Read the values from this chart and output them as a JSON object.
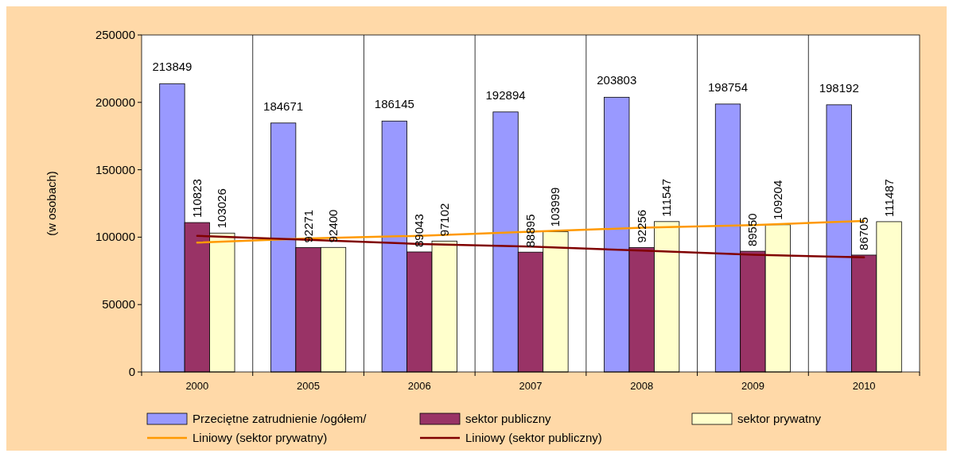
{
  "chart_data": {
    "type": "bar",
    "ylabel": "(w osobach)",
    "categories": [
      "2000",
      "2005",
      "2006",
      "2007",
      "2008",
      "2009",
      "2010"
    ],
    "series": [
      {
        "name": "Przeciętne zatrudnienie /ogółem/",
        "color": "#9999ff",
        "values": [
          213849,
          184671,
          186145,
          192894,
          203803,
          198754,
          198192
        ],
        "value_labels": [
          "213849",
          "184671",
          "186145",
          "192894",
          "203803",
          "198754",
          "198192"
        ]
      },
      {
        "name": "sektor publiczny",
        "color": "#993366",
        "values": [
          110823,
          92271,
          89043,
          88895,
          92256,
          89550,
          86705
        ],
        "value_labels": [
          "110823",
          "92271",
          "89043",
          "88895",
          "92256",
          "89550",
          "86705"
        ]
      },
      {
        "name": "sektor prywatny",
        "color": "#ffffcc",
        "values": [
          103026,
          92400,
          97102,
          103999,
          111547,
          109204,
          111487
        ],
        "value_labels": [
          "103026",
          "92400",
          "97102",
          "103999",
          "111547",
          "109204",
          "111487"
        ]
      },
      {
        "name": "Liniowy (sektor prywatny)",
        "type": "line",
        "color": "#ff9900",
        "values": [
          96000,
          99000,
          101000,
          104000,
          107000,
          109000,
          112000
        ]
      },
      {
        "name": "Liniowy (sektor publiczny)",
        "type": "line",
        "color": "#800000",
        "values": [
          101000,
          98000,
          95000,
          93000,
          90000,
          87000,
          85000
        ]
      }
    ],
    "ylim": [
      0,
      250000
    ],
    "yticks": [
      0,
      50000,
      100000,
      150000,
      200000,
      250000
    ],
    "grid": "x",
    "legend": "bottom"
  }
}
